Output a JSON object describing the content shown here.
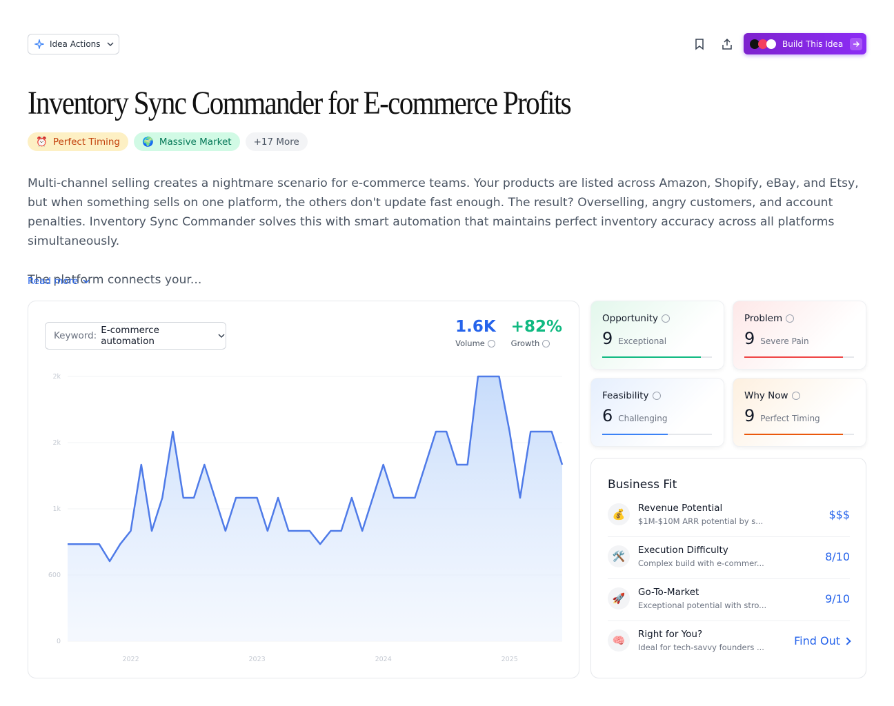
{
  "header": {
    "actions": "Idea Actions",
    "build": "Build This Idea"
  },
  "title": "Inventory Sync Commander for E-commerce Profits",
  "tags": [
    {
      "icon": "⏰",
      "label": "Perfect Timing"
    },
    {
      "icon": "🌍",
      "label": "Massive Market"
    },
    {
      "label": "+17 More"
    }
  ],
  "description": [
    "Multi-channel selling creates a nightmare scenario for e-commerce teams. Your products are listed across Amazon, Shopify, eBay, and Etsy, but when something sells on one platform, the others don't update fast enough. The result? Overselling, angry customers, and account penalties. Inventory Sync Commander solves this with smart automation that maintains perfect inventory accuracy across all platforms simultaneously.",
    "The platform connects your..."
  ],
  "read_more": "Read more",
  "keyword": {
    "label": "Keyword:",
    "value": "E-commerce automation"
  },
  "stats": [
    {
      "value": "1.6K",
      "label": "Volume"
    },
    {
      "value": "+82%",
      "label": "Growth"
    }
  ],
  "scores": [
    {
      "name": "Opportunity",
      "score": 9,
      "label": "Exceptional",
      "color": "#10b981"
    },
    {
      "name": "Problem",
      "score": 9,
      "label": "Severe Pain",
      "color": "#ef4444"
    },
    {
      "name": "Feasibility",
      "score": 6,
      "label": "Challenging",
      "color": "#3b82f6"
    },
    {
      "name": "Why Now",
      "score": 9,
      "label": "Perfect Timing",
      "color": "#ea580c"
    }
  ],
  "business_fit": {
    "title": "Business Fit",
    "items": [
      {
        "icon": "💰",
        "name": "Revenue Potential",
        "detail": "$1M-$10M ARR potential by s...",
        "value": "$$$"
      },
      {
        "icon": "🛠️",
        "name": "Execution Difficulty",
        "detail": "Complex build with e-commer...",
        "value": "8/10"
      },
      {
        "icon": "🚀",
        "name": "Go-To-Market",
        "detail": "Exceptional potential with stro...",
        "value": "9/10"
      },
      {
        "icon": "🧠",
        "name": "Right for You?",
        "detail": "Ideal for tech-savvy founders ...",
        "value": "Find Out"
      }
    ]
  },
  "chart_data": {
    "type": "line",
    "color": "#4f7be8",
    "categories": [
      null,
      null,
      null,
      null,
      null,
      null,
      "2022",
      null,
      null,
      null,
      null,
      null,
      null,
      null,
      null,
      null,
      null,
      null,
      "2023",
      null,
      null,
      null,
      null,
      null,
      null,
      null,
      null,
      null,
      null,
      null,
      "2024",
      null,
      null,
      null,
      null,
      null,
      null,
      null,
      null,
      null,
      null,
      null,
      "2025",
      null,
      null,
      null,
      null,
      null
    ],
    "values": [
      880,
      880,
      880,
      880,
      725,
      880,
      1000,
      1600,
      1000,
      1300,
      1900,
      1300,
      1300,
      1600,
      1300,
      1000,
      1300,
      1300,
      1300,
      1000,
      1300,
      1000,
      1000,
      1000,
      880,
      1000,
      1000,
      1300,
      1000,
      1300,
      1600,
      1300,
      1300,
      1300,
      1600,
      1900,
      1900,
      1600,
      1600,
      2400,
      2400,
      2400,
      1900,
      1300,
      1900,
      1900,
      1900,
      1600
    ],
    "ylim": [
      0,
      2400
    ],
    "yticks": [
      0,
      600,
      {
        "value": 1200,
        "label": "1k"
      },
      {
        "value": 1800,
        "label": "2k"
      },
      {
        "value": 2400,
        "label": "2k"
      }
    ],
    "grid": true
  }
}
